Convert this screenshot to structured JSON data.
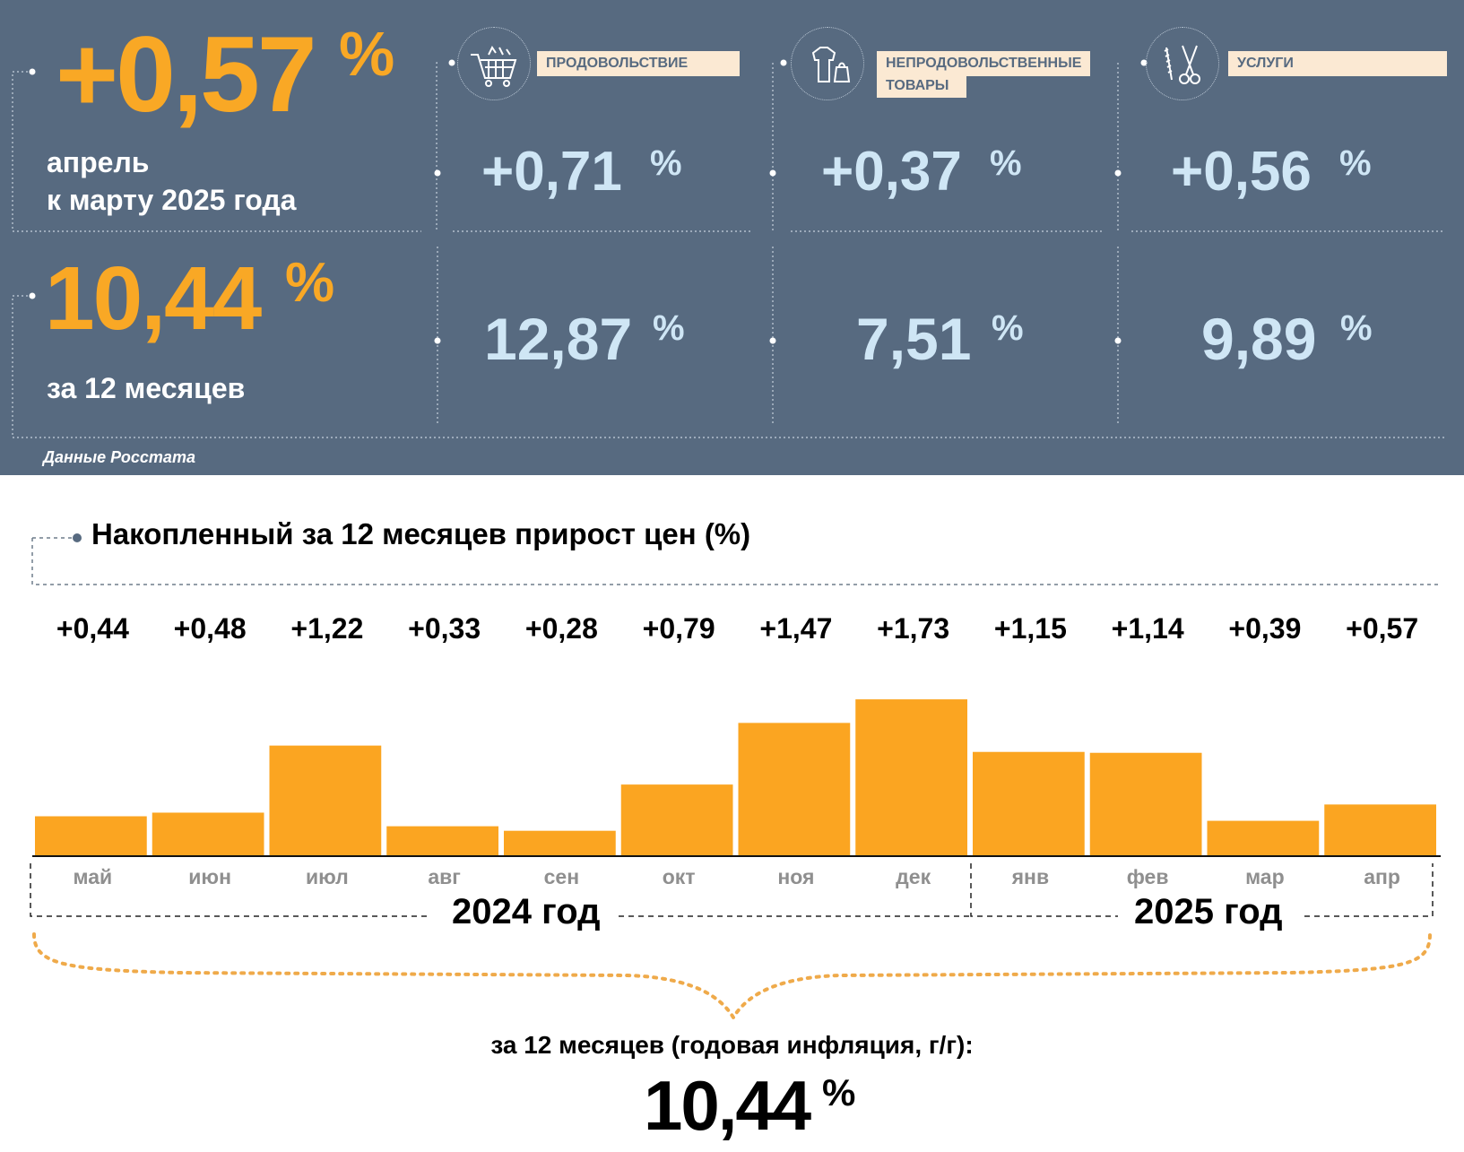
{
  "summary": {
    "monthly_value": "+0,57",
    "monthly_pct": "%",
    "monthly_caption_line1": "апрель",
    "monthly_caption_line2": "к марту 2025 года",
    "annual_value": "10,44",
    "annual_pct": "%",
    "annual_caption": "за 12 месяцев",
    "source": "Данные Росстата"
  },
  "categories": [
    {
      "title": "ПРОДОВОЛЬСТВИЕ",
      "icon": "shopping-cart-icon",
      "monthly": "+0,71",
      "annual": "12,87",
      "pct": "%"
    },
    {
      "title": "НЕПРОДОВОЛЬСТВЕННЫЕ ТОВАРЫ",
      "title_line1": "НЕПРОДОВОЛЬСТВЕННЫЕ",
      "title_line2": "ТОВАРЫ",
      "icon": "clothes-bag-icon",
      "monthly": "+0,37",
      "annual": "7,51",
      "pct": "%"
    },
    {
      "title": "УСЛУГИ",
      "icon": "comb-scissors-icon",
      "monthly": "+0,56",
      "annual": "9,89",
      "pct": "%"
    }
  ],
  "chart_data": {
    "type": "bar",
    "title": "Накопленный за 12 месяцев прирост цен (%)",
    "categories": [
      "май",
      "июн",
      "июл",
      "авг",
      "сен",
      "окт",
      "ноя",
      "дек",
      "янв",
      "фев",
      "мар",
      "апр"
    ],
    "values": [
      0.44,
      0.48,
      1.22,
      0.33,
      0.28,
      0.79,
      1.47,
      1.73,
      1.15,
      1.14,
      0.39,
      0.57
    ],
    "value_labels": [
      "+0,44",
      "+0,48",
      "+1,22",
      "+0,33",
      "+0,28",
      "+0,79",
      "+1,47",
      "+1,73",
      "+1,15",
      "+1,14",
      "+0,39",
      "+0,57"
    ],
    "year_groups": [
      {
        "label": "2024 год",
        "months": 8
      },
      {
        "label": "2025 год",
        "months": 4
      }
    ],
    "bar_color": "#fba521",
    "ylim": [
      0,
      1.8
    ],
    "annual_label": "за 12 месяцев (годовая инфляция, г/г):",
    "annual_value": "10,44",
    "annual_pct": "%"
  },
  "colors": {
    "panel": "#576a80",
    "accent_orange": "#f9a825",
    "light_blue": "#cfe6f5",
    "badge_bg": "#fbe9d3"
  }
}
